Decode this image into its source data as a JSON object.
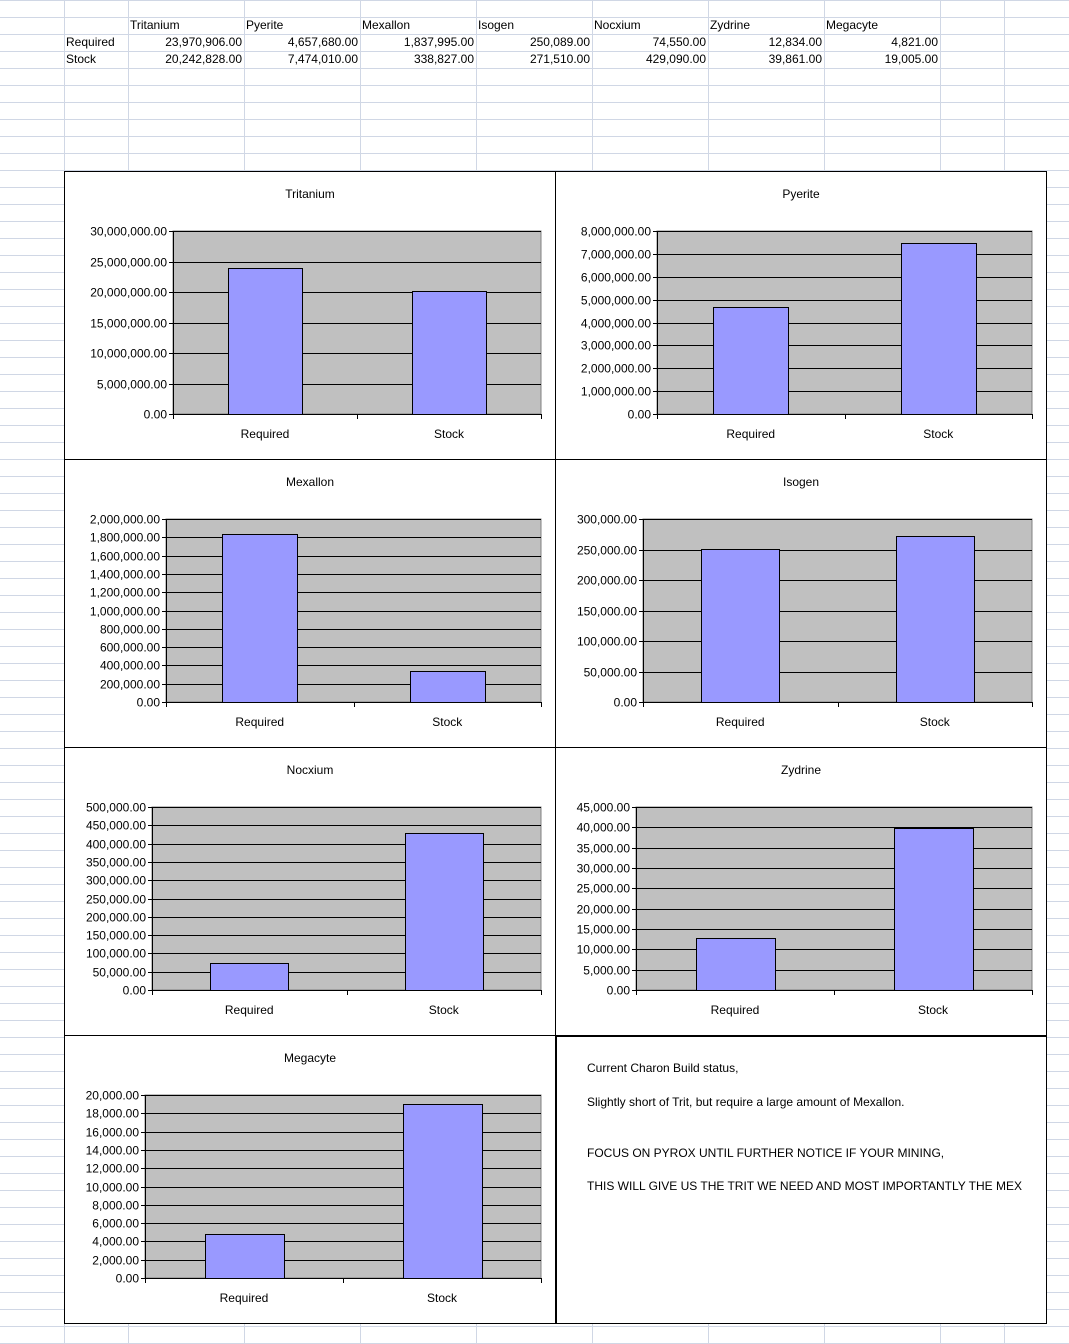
{
  "sheet": {
    "headers": [
      "Tritanium",
      "Pyerite",
      "Mexallon",
      "Isogen",
      "Nocxium",
      "Zydrine",
      "Megacyte"
    ],
    "rows": [
      {
        "label": "Required",
        "values": [
          "23,970,906.00",
          "4,657,680.00",
          "1,837,995.00",
          "250,089.00",
          "74,550.00",
          "12,834.00",
          "4,821.00"
        ]
      },
      {
        "label": "Stock",
        "values": [
          "20,242,828.00",
          "7,474,010.00",
          "338,827.00",
          "271,510.00",
          "429,090.00",
          "39,861.00",
          "19,005.00"
        ]
      }
    ]
  },
  "colors": {
    "bar": "#9999ff",
    "plot_bg": "#c0c0c0",
    "grid": "#000000",
    "border": "#000000"
  },
  "chart_data": [
    {
      "type": "bar",
      "title": "Tritanium",
      "categories": [
        "Required",
        "Stock"
      ],
      "values": [
        23970906,
        20242828
      ],
      "ylim": [
        0,
        30000000
      ],
      "ytick_step": 5000000,
      "xlabel": "",
      "ylabel": ""
    },
    {
      "type": "bar",
      "title": "Pyerite",
      "categories": [
        "Required",
        "Stock"
      ],
      "values": [
        4657680,
        7474010
      ],
      "ylim": [
        0,
        8000000
      ],
      "ytick_step": 1000000,
      "xlabel": "",
      "ylabel": ""
    },
    {
      "type": "bar",
      "title": "Mexallon",
      "categories": [
        "Required",
        "Stock"
      ],
      "values": [
        1837995,
        338827
      ],
      "ylim": [
        0,
        2000000
      ],
      "ytick_step": 200000,
      "xlabel": "",
      "ylabel": ""
    },
    {
      "type": "bar",
      "title": "Isogen",
      "categories": [
        "Required",
        "Stock"
      ],
      "values": [
        250089,
        271510
      ],
      "ylim": [
        0,
        300000
      ],
      "ytick_step": 50000,
      "xlabel": "",
      "ylabel": ""
    },
    {
      "type": "bar",
      "title": "Nocxium",
      "categories": [
        "Required",
        "Stock"
      ],
      "values": [
        74550,
        429090
      ],
      "ylim": [
        0,
        500000
      ],
      "ytick_step": 50000,
      "xlabel": "",
      "ylabel": ""
    },
    {
      "type": "bar",
      "title": "Zydrine",
      "categories": [
        "Required",
        "Stock"
      ],
      "values": [
        12834,
        39861
      ],
      "ylim": [
        0,
        45000
      ],
      "ytick_step": 5000,
      "xlabel": "",
      "ylabel": ""
    },
    {
      "type": "bar",
      "title": "Megacyte",
      "categories": [
        "Required",
        "Stock"
      ],
      "values": [
        4821,
        19005
      ],
      "ylim": [
        0,
        20000
      ],
      "ytick_step": 2000,
      "xlabel": "",
      "ylabel": ""
    }
  ],
  "note": {
    "line1": "Current Charon Build status,",
    "line2": "Slightly short of Trit, but require a large amount of Mexallon.",
    "line3": "FOCUS ON PYROX UNTIL FURTHER NOTICE IF YOUR MINING,",
    "line4": "THIS WILL GIVE US THE TRIT WE NEED AND MOST IMPORTANTLY THE MEX"
  }
}
